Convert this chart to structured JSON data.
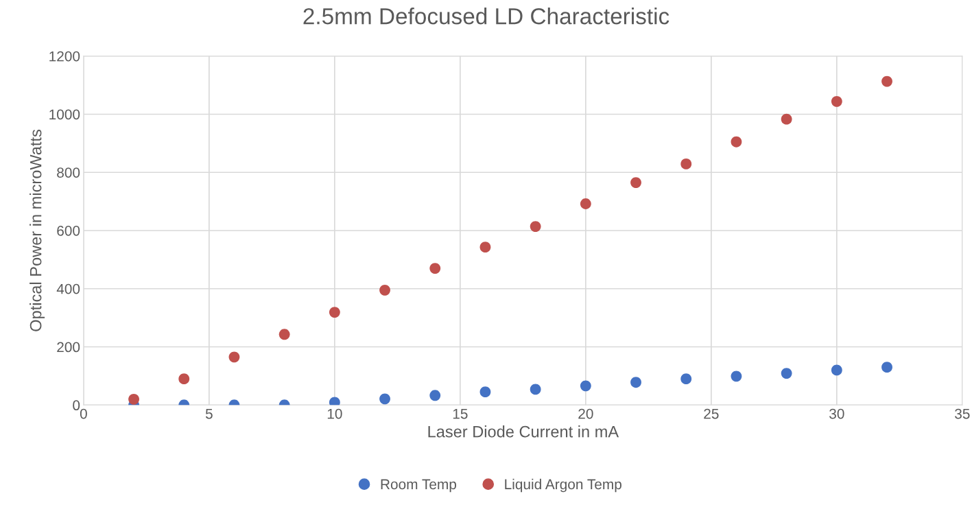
{
  "chart_data": {
    "type": "scatter",
    "title": "2.5mm Defocused LD Characteristic",
    "xlabel": "Laser Diode Current in mA",
    "ylabel": "Optical Power in microWatts",
    "x": [
      2,
      4,
      6,
      8,
      10,
      12,
      14,
      16,
      18,
      20,
      22,
      24,
      26,
      28,
      30,
      32
    ],
    "series": [
      {
        "name": "Room Temp",
        "color": "#4472c4",
        "values": [
          0,
          0,
          0,
          0,
          9,
          21,
          33,
          45,
          54,
          66,
          78,
          90,
          99,
          109,
          120,
          130
        ]
      },
      {
        "name": "Liquid Argon Temp",
        "color": "#c0504d",
        "values": [
          20,
          90,
          165,
          243,
          319,
          395,
          470,
          543,
          614,
          692,
          765,
          829,
          905,
          983,
          1044,
          1113
        ]
      }
    ],
    "xlim": [
      0,
      35
    ],
    "xticks": [
      0,
      5,
      10,
      15,
      20,
      25,
      30,
      35
    ],
    "ylim": [
      0,
      1200
    ],
    "yticks": [
      0,
      200,
      400,
      600,
      800,
      1000,
      1200
    ],
    "grid": true,
    "legend": "bottom",
    "marker": "circle"
  }
}
